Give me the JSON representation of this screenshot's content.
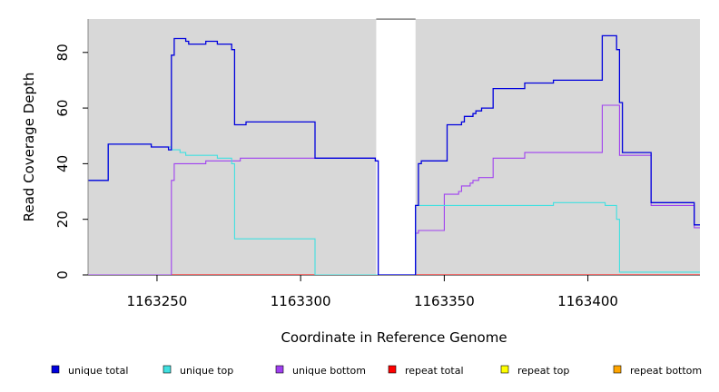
{
  "chart_data": {
    "type": "line",
    "xlabel": "Coordinate in Reference Genome",
    "ylabel": "Read Coverage Depth",
    "xlim": [
      1163226,
      1163439
    ],
    "ylim": [
      0,
      92
    ],
    "x_ticks": [
      1163250,
      1163300,
      1163350,
      1163400
    ],
    "y_ticks": [
      0,
      20,
      40,
      60,
      80
    ],
    "grid": false,
    "background": "#d8d8d8",
    "gap": [
      1163326,
      1163340
    ],
    "legend_position": "bottom",
    "series": [
      {
        "name": "unique total",
        "color": "#0000dd",
        "points": [
          [
            1163226,
            34
          ],
          [
            1163233,
            47
          ],
          [
            1163248,
            46
          ],
          [
            1163254,
            45
          ],
          [
            1163255,
            79
          ],
          [
            1163256,
            85
          ],
          [
            1163260,
            84
          ],
          [
            1163261,
            83
          ],
          [
            1163267,
            84
          ],
          [
            1163271,
            83
          ],
          [
            1163276,
            81
          ],
          [
            1163277,
            54
          ],
          [
            1163281,
            55
          ],
          [
            1163305,
            42
          ],
          [
            1163326,
            41
          ],
          [
            1163327,
            0
          ],
          [
            1163340,
            25
          ],
          [
            1163341,
            40
          ],
          [
            1163342,
            41
          ],
          [
            1163351,
            54
          ],
          [
            1163356,
            55
          ],
          [
            1163357,
            57
          ],
          [
            1163360,
            58
          ],
          [
            1163361,
            59
          ],
          [
            1163363,
            60
          ],
          [
            1163367,
            67
          ],
          [
            1163378,
            69
          ],
          [
            1163388,
            70
          ],
          [
            1163405,
            86
          ],
          [
            1163410,
            81
          ],
          [
            1163411,
            62
          ],
          [
            1163412,
            44
          ],
          [
            1163422,
            26
          ],
          [
            1163437,
            18
          ],
          [
            1163439,
            18
          ]
        ]
      },
      {
        "name": "unique top",
        "color": "#40e0e0",
        "points": [
          [
            1163226,
            34
          ],
          [
            1163233,
            47
          ],
          [
            1163248,
            46
          ],
          [
            1163255,
            45
          ],
          [
            1163258,
            44
          ],
          [
            1163260,
            43
          ],
          [
            1163271,
            42
          ],
          [
            1163276,
            40
          ],
          [
            1163277,
            13
          ],
          [
            1163305,
            0
          ],
          [
            1163340,
            25
          ],
          [
            1163388,
            26
          ],
          [
            1163406,
            25
          ],
          [
            1163410,
            20
          ],
          [
            1163411,
            1
          ],
          [
            1163439,
            1
          ]
        ]
      },
      {
        "name": "unique bottom",
        "color": "#a040f0",
        "points": [
          [
            1163226,
            0
          ],
          [
            1163255,
            34
          ],
          [
            1163256,
            40
          ],
          [
            1163267,
            41
          ],
          [
            1163279,
            42
          ],
          [
            1163326,
            41
          ],
          [
            1163327,
            0
          ],
          [
            1163340,
            15
          ],
          [
            1163341,
            16
          ],
          [
            1163350,
            29
          ],
          [
            1163355,
            30
          ],
          [
            1163356,
            32
          ],
          [
            1163359,
            33
          ],
          [
            1163360,
            34
          ],
          [
            1163362,
            35
          ],
          [
            1163367,
            42
          ],
          [
            1163378,
            44
          ],
          [
            1163405,
            61
          ],
          [
            1163411,
            43
          ],
          [
            1163422,
            25
          ],
          [
            1163437,
            17
          ],
          [
            1163439,
            17
          ]
        ]
      },
      {
        "name": "repeat total",
        "color": "#ff0000",
        "points": [
          [
            1163226,
            0
          ],
          [
            1163439,
            0
          ]
        ]
      },
      {
        "name": "repeat top",
        "color": "#ffff00",
        "points": [
          [
            1163226,
            0
          ],
          [
            1163439,
            0
          ]
        ]
      },
      {
        "name": "repeat bottom",
        "color": "#ffa500",
        "points": [
          [
            1163226,
            0
          ],
          [
            1163439,
            0
          ]
        ]
      }
    ]
  }
}
